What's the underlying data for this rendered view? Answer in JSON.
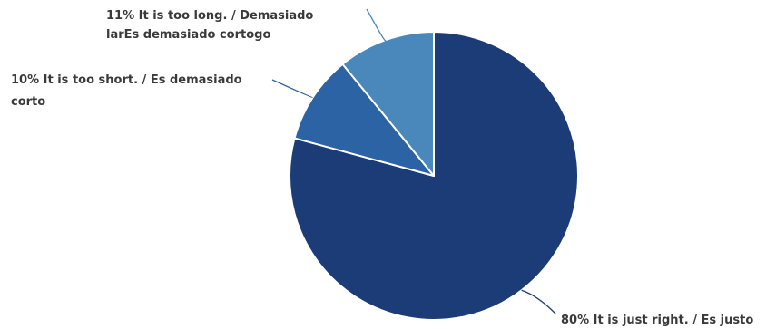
{
  "chart_data": {
    "type": "pie",
    "title": "",
    "start_angle_deg": -90,
    "direction": "clockwise",
    "slices": [
      {
        "label": "80% It is just right. / Es justo",
        "value": 80,
        "color": "#1c3c78"
      },
      {
        "label": "10% It is too short. / Es demasiado corto",
        "value": 10,
        "color": "#2b63a5"
      },
      {
        "label": "11% It is too long. / Demasiado larEs demasiado cortogo",
        "value": 11,
        "color": "#4a88bb"
      }
    ]
  }
}
